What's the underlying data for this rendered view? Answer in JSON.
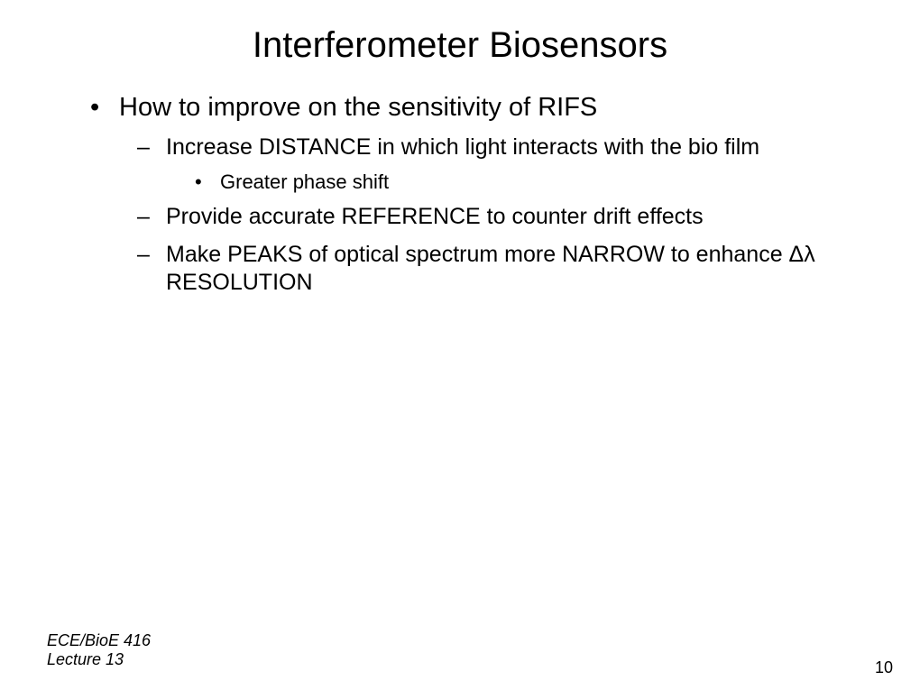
{
  "title": "Interferometer Biosensors",
  "bullets": {
    "main": "How to improve on the sensitivity of RIFS",
    "sub1": "Increase DISTANCE in which light interacts with the bio film",
    "sub1a": "Greater phase shift",
    "sub2": "Provide accurate REFERENCE to counter drift effects",
    "sub3": "Make PEAKS of optical spectrum more NARROW to enhance Δλ RESOLUTION"
  },
  "footer": {
    "course": "ECE/BioE 416",
    "lecture": "Lecture 13",
    "page": "10"
  },
  "style": {
    "background": "#ffffff",
    "text_color": "#000000",
    "title_fontsize": 40,
    "l1_fontsize": 29,
    "l2_fontsize": 25,
    "l3_fontsize": 22,
    "footer_fontsize": 18
  }
}
